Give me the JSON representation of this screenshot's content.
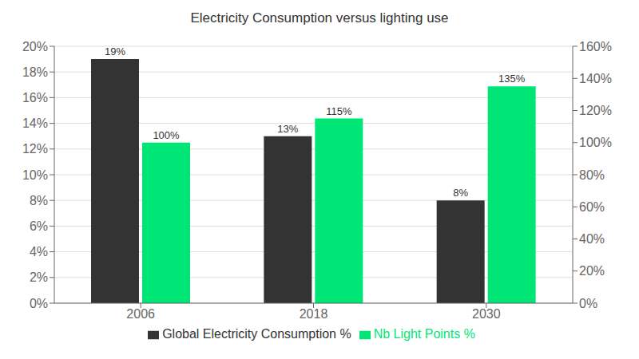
{
  "chart_data": {
    "type": "bar",
    "title": "Electricity Consumption versus lighting use",
    "categories": [
      "2006",
      "2018",
      "2030"
    ],
    "series": [
      {
        "name": "Global Electricity Consumption %",
        "color": "#333333",
        "values": [
          19,
          13,
          8
        ],
        "value_labels": [
          "19%",
          "13%",
          "8%"
        ]
      },
      {
        "name": "Nb Light Points %",
        "color": "#00e676",
        "values": [
          100,
          115,
          135
        ],
        "value_labels": [
          "100%",
          "115%",
          "135%"
        ],
        "axis": "y2"
      }
    ],
    "ylim": [
      0,
      20
    ],
    "yticks": [
      {
        "value": 0,
        "label": "0%"
      },
      {
        "value": 2,
        "label": "2%"
      },
      {
        "value": 4,
        "label": "4%"
      },
      {
        "value": 6,
        "label": "6%"
      },
      {
        "value": 8,
        "label": "8%"
      },
      {
        "value": 10,
        "label": "10%"
      },
      {
        "value": 12,
        "label": "12%"
      },
      {
        "value": 14,
        "label": "14%"
      },
      {
        "value": 16,
        "label": "16%"
      },
      {
        "value": 18,
        "label": "18%"
      },
      {
        "value": 20,
        "label": "20%"
      }
    ],
    "y2lim": [
      0,
      160
    ],
    "y2ticks": [
      {
        "value": 0,
        "label": "0%"
      },
      {
        "value": 20,
        "label": "20%"
      },
      {
        "value": 40,
        "label": "40%"
      },
      {
        "value": 60,
        "label": "60%"
      },
      {
        "value": 80,
        "label": "80%"
      },
      {
        "value": 100,
        "label": "100%"
      },
      {
        "value": 120,
        "label": "120%"
      },
      {
        "value": 140,
        "label": "140%"
      },
      {
        "value": 160,
        "label": "160%"
      }
    ],
    "grid": true,
    "legend": "bottom",
    "data_labels": true
  }
}
